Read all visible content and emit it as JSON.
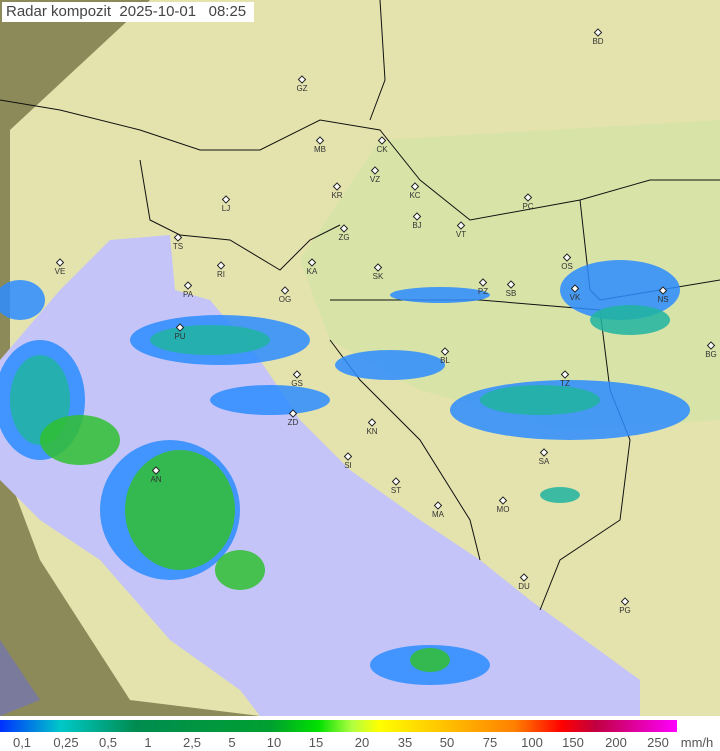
{
  "title": "Radar kompozit  2025-10-01   08:25",
  "legend": {
    "ticks": [
      "0,1",
      "0,25",
      "0,5",
      "1",
      "2,5",
      "5",
      "10",
      "15",
      "20",
      "35",
      "50",
      "75",
      "100",
      "150",
      "200",
      "250"
    ],
    "unit": "mm/h"
  },
  "cities": [
    "GZ",
    "BD",
    "MB",
    "CK",
    "VZ",
    "KR",
    "KC",
    "PC",
    "LJ",
    "ZG",
    "BJ",
    "VT",
    "TS",
    "VE",
    "RI",
    "KA",
    "SK",
    "OS",
    "PA",
    "OG",
    "PZ",
    "SB",
    "VK",
    "NS",
    "PU",
    "BL",
    "BG",
    "GS",
    "TZ",
    "ZD",
    "KN",
    "SA",
    "SI",
    "AN",
    "ST",
    "MO",
    "MA",
    "DU",
    "PG"
  ],
  "colors": {
    "land_outside": "#8c8a58",
    "coverage": "#e6e4b0",
    "sea": "#c4c4f8",
    "rain_light": "#2c8cff",
    "rain_mid": "#20b4a0",
    "rain_heavy": "#30c030"
  }
}
